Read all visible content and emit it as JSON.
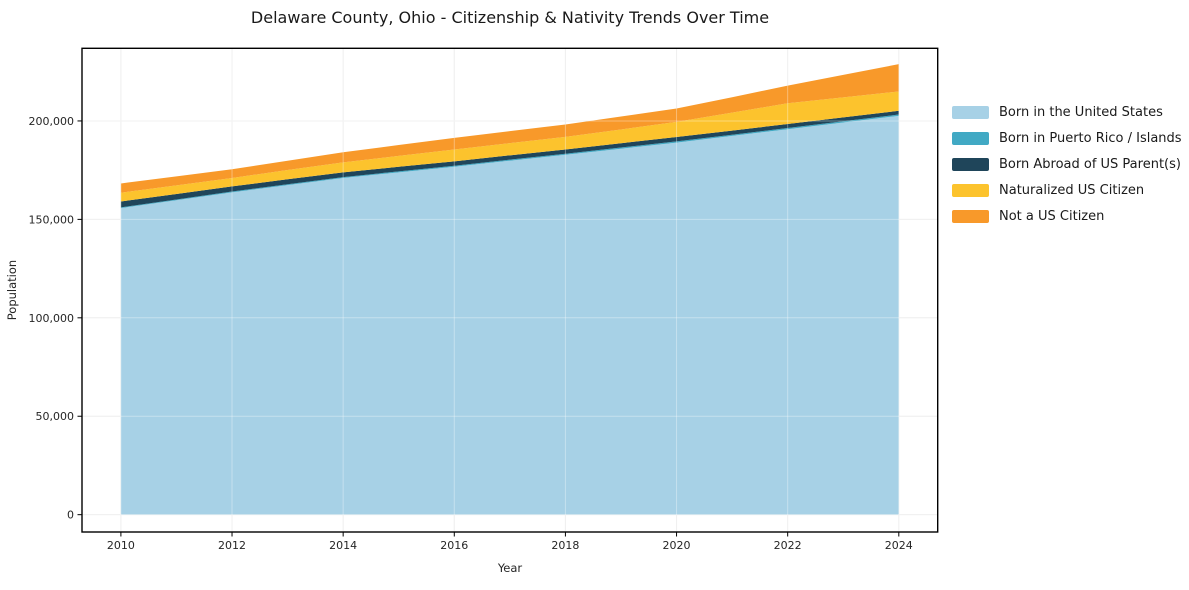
{
  "figure": {
    "title": "Delaware County, Ohio - Citizenship & Nativity Trends Over Time"
  },
  "chart_data": {
    "type": "area",
    "stacked": true,
    "title": "Delaware County, Ohio - Citizenship & Nativity Trends Over Time",
    "xlabel": "Year",
    "ylabel": "Population",
    "x": [
      2010,
      2011,
      2012,
      2013,
      2014,
      2015,
      2016,
      2017,
      2018,
      2019,
      2020,
      2021,
      2022,
      2023,
      2024
    ],
    "series": [
      {
        "name": "Born in the United States",
        "color": "#a7d1e6",
        "values": [
          155700,
          159700,
          163700,
          167400,
          171000,
          173900,
          176700,
          179800,
          182800,
          185900,
          189000,
          192400,
          195800,
          199200,
          202600
        ]
      },
      {
        "name": "Born in Puerto Rico / Islands",
        "color": "#41a9c4",
        "values": [
          400,
          420,
          440,
          460,
          480,
          500,
          520,
          540,
          560,
          580,
          600,
          610,
          620,
          640,
          650
        ]
      },
      {
        "name": "Born Abroad of US Parent(s)",
        "color": "#1f455a",
        "values": [
          3000,
          2800,
          2600,
          2500,
          2400,
          2300,
          2250,
          2200,
          2150,
          2200,
          2250,
          2100,
          2000,
          1950,
          1900
        ]
      },
      {
        "name": "Naturalized US Citizen",
        "color": "#fcc32d",
        "values": [
          4450,
          4350,
          4300,
          4700,
          5100,
          5550,
          6000,
          6200,
          6400,
          7000,
          7650,
          9100,
          10600,
          10200,
          9800
        ]
      },
      {
        "name": "Not a US Citizen",
        "color": "#f8992a",
        "values": [
          4700,
          4550,
          4400,
          4750,
          5100,
          5500,
          5900,
          6100,
          6300,
          6550,
          6800,
          7850,
          8900,
          11400,
          13900
        ]
      }
    ],
    "xlim": [
      2009.3,
      2024.7
    ],
    "ylim": [
      -8800,
      236900
    ],
    "xticks": [
      2010,
      2012,
      2014,
      2016,
      2018,
      2020,
      2022,
      2024
    ],
    "yticks": [
      0,
      50000,
      100000,
      150000,
      200000
    ],
    "ytick_labels": [
      "0",
      "50,000",
      "100,000",
      "150,000",
      "200,000"
    ],
    "grid": true,
    "legend_position": "right"
  }
}
